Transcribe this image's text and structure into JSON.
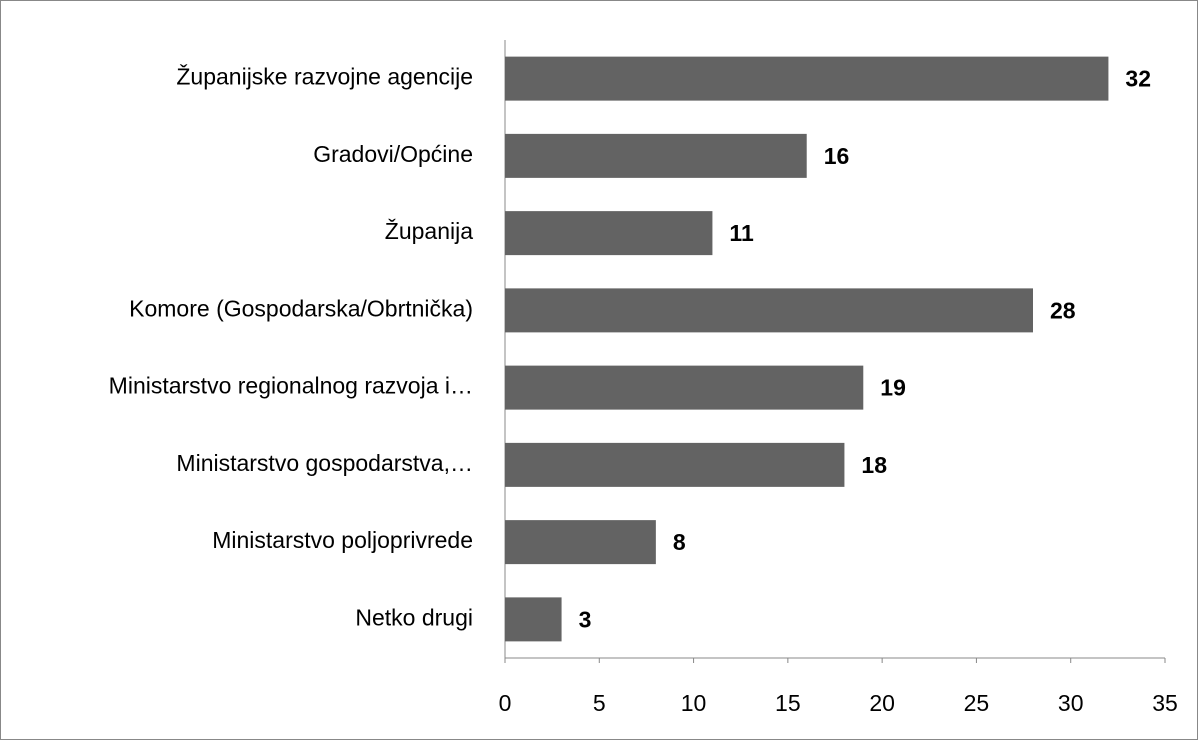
{
  "chart_data": {
    "type": "bar",
    "orientation": "horizontal",
    "categories": [
      "Županijske razvojne agencije",
      "Gradovi/Općine",
      "Županija",
      "Komore (Gospodarska/Obrtnička)",
      "Ministarstvo regionalnog razvoja i…",
      "Ministarstvo gospodarstva,…",
      "Ministarstvo poljoprivrede",
      "Netko drugi"
    ],
    "values": [
      32,
      16,
      11,
      28,
      19,
      18,
      8,
      3
    ],
    "color": "#636363",
    "xlim": [
      0,
      35
    ],
    "xticks": [
      0,
      5,
      10,
      15,
      20,
      25,
      30,
      35
    ],
    "grid": false
  }
}
